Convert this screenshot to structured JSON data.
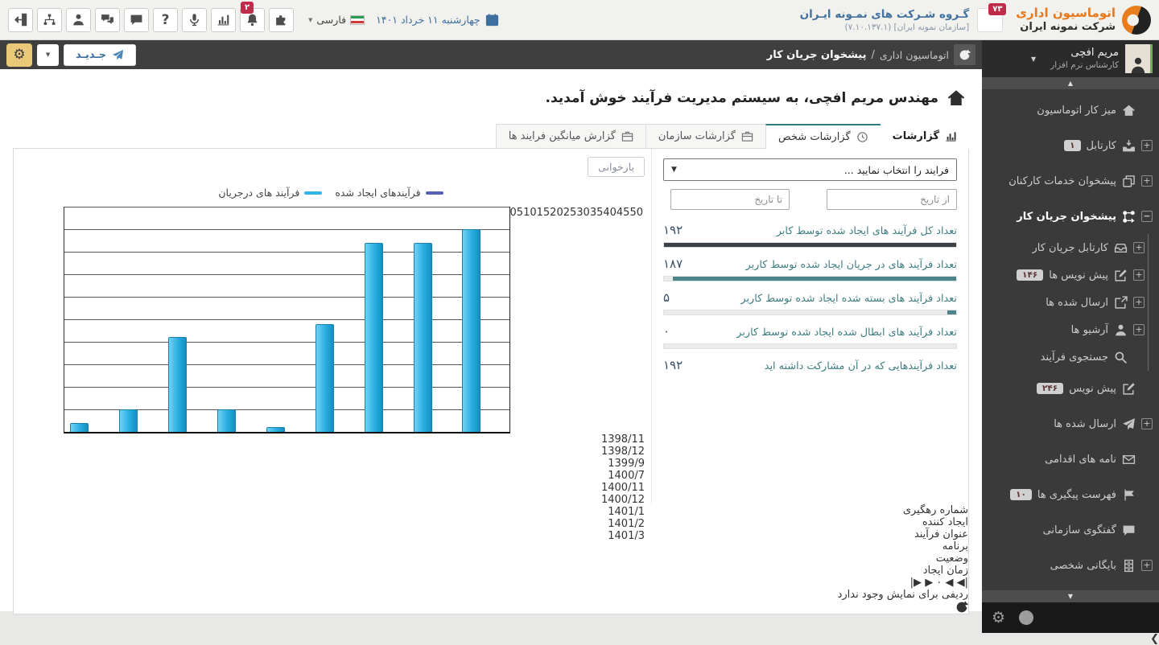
{
  "header": {
    "logo_title": "اتوماسیون اداری",
    "logo_subtitle": "شرکت نمونه ایران",
    "org_badge_count": "۷۳",
    "org_name": "گـروه شـرکت های نمـونه ایـران",
    "org_version": "[سازمان نمونه ایران]  (۷.۱۰.۱۳۷.۱)",
    "date": "چهارشنبه ۱۱ خرداد ۱۴۰۱",
    "language": "فارسی",
    "bell_badge": "۲",
    "toolbar_icons": [
      "logout",
      "org-chart",
      "user",
      "group-chat",
      "chat",
      "help",
      "microphone",
      "statistics",
      "notifications",
      "plugins"
    ]
  },
  "actionbar": {
    "breadcrumb_app": "اتوماسیون اداری",
    "breadcrumb_sep": "/",
    "breadcrumb_page": "پیشخوان جریان کار",
    "new_button": "جـدیـد"
  },
  "sidebar": {
    "user": {
      "name": "مریم افچی",
      "role": "کارشناس نرم افزار"
    },
    "items": [
      {
        "label": "میز کار اتوماسیون",
        "icon": "home",
        "expand": null
      },
      {
        "label": "کارتابل",
        "icon": "inbox",
        "expand": "plus",
        "badge": "۱"
      },
      {
        "label": "پیشخوان خدمات کارکنان",
        "icon": "services",
        "expand": "plus"
      },
      {
        "label": "پیشخوان جریان کار",
        "icon": "workflow",
        "expand": "minus",
        "active": true,
        "children": [
          {
            "label": "کارتابل جریان کار",
            "icon": "inbox2",
            "expand": "plus"
          },
          {
            "label": "پیش نویس ها",
            "icon": "pencil",
            "expand": "plus",
            "badge": "۱۴۶"
          },
          {
            "label": "ارسال شده ها",
            "icon": "external",
            "expand": "plus"
          },
          {
            "label": "آرشیو ها",
            "icon": "person",
            "expand": "plus"
          },
          {
            "label": "جستجوی فرآیند",
            "icon": "search",
            "expand": null
          }
        ]
      },
      {
        "label": "پیش نویس",
        "icon": "pencil",
        "expand": null,
        "badge": "۲۴۶"
      },
      {
        "label": "ارسال شده ها",
        "icon": "plane",
        "expand": "plus"
      },
      {
        "label": "نامه های اقدامی",
        "icon": "mail",
        "expand": null
      },
      {
        "label": "فهرست پیگیری ها",
        "icon": "flag",
        "expand": null,
        "badge": "۱۰"
      },
      {
        "label": "گفتگوی سازمانی",
        "icon": "chat",
        "expand": null
      },
      {
        "label": "بایگانی شخصی",
        "icon": "archive",
        "expand": "plus"
      }
    ]
  },
  "main": {
    "welcome": "مهندس مریم افچی، به سیستم مدیریت فرآیند خوش آمدید.",
    "tabs": [
      {
        "label": "گزارشات",
        "icon": "chart",
        "type": "caption"
      },
      {
        "label": "گزارشات شخص",
        "icon": "clock",
        "active": true
      },
      {
        "label": "گزارشات سازمان",
        "icon": "briefcase"
      },
      {
        "label": "گزارش میانگین فرایند ها",
        "icon": "briefcase"
      }
    ],
    "filters": {
      "process_select": "فرایند را انتخاب نمایید ...",
      "from_date_placeholder": "از تاریخ",
      "to_date_placeholder": "تا تاریخ",
      "reload_button": "بازخوانی"
    },
    "stats": [
      {
        "label": "تعداد کل فرآیند های ایجاد شده توسط کابر",
        "value": "۱۹۲",
        "bar_color": "#3c4147",
        "bar_pct": 100
      },
      {
        "label": "تعداد فرآیند های در جریان ایجاد شده توسط کاربر",
        "value": "۱۸۷",
        "bar_color": "#4c858a",
        "bar_pct": 97
      },
      {
        "label": "تعداد فرآیند های بسته شده ایجاد شده توسط کاربر",
        "value": "۵",
        "bar_color": "#4c858a",
        "bar_pct": 3
      },
      {
        "label": "تعداد فرآیند های ابطال شده ایجاد شده توسط کاربر",
        "value": "۰",
        "bar_color": "#4c858a",
        "bar_pct": 0
      },
      {
        "label": "تعداد فرآیندهایی که در آن مشارکت داشته اید",
        "value": "۱۹۲",
        "bar_color": null,
        "bar_pct": null
      }
    ],
    "table": {
      "columns": [
        "شماره رهگیری",
        "ایجاد کننده",
        "عنوان فرآیند",
        "برنامه",
        "وضعیت",
        "زمان ایجاد"
      ],
      "empty_text": "ردیفی برای نمایش وجود ندارد",
      "page": "۰"
    }
  },
  "chart_data": {
    "type": "bar",
    "categories": [
      "1398/11",
      "1398/12",
      "1399/9",
      "1400/7",
      "1400/11",
      "1400/12",
      "1401/1",
      "1401/2",
      "1401/3"
    ],
    "series": [
      {
        "name": "فرآیندهای ایجاد شده",
        "color": "#5560b2",
        "values": [
          6,
          5,
          22,
          5,
          1,
          24,
          42,
          42,
          45
        ]
      },
      {
        "name": "فرآیند های درجریان",
        "color": "#2fb3e3",
        "values": [
          2,
          5,
          21,
          5,
          1,
          24,
          42,
          42,
          45
        ]
      }
    ],
    "ylim": [
      0,
      50
    ],
    "ytick_step": 5,
    "grid": true,
    "legend_position": "top"
  }
}
